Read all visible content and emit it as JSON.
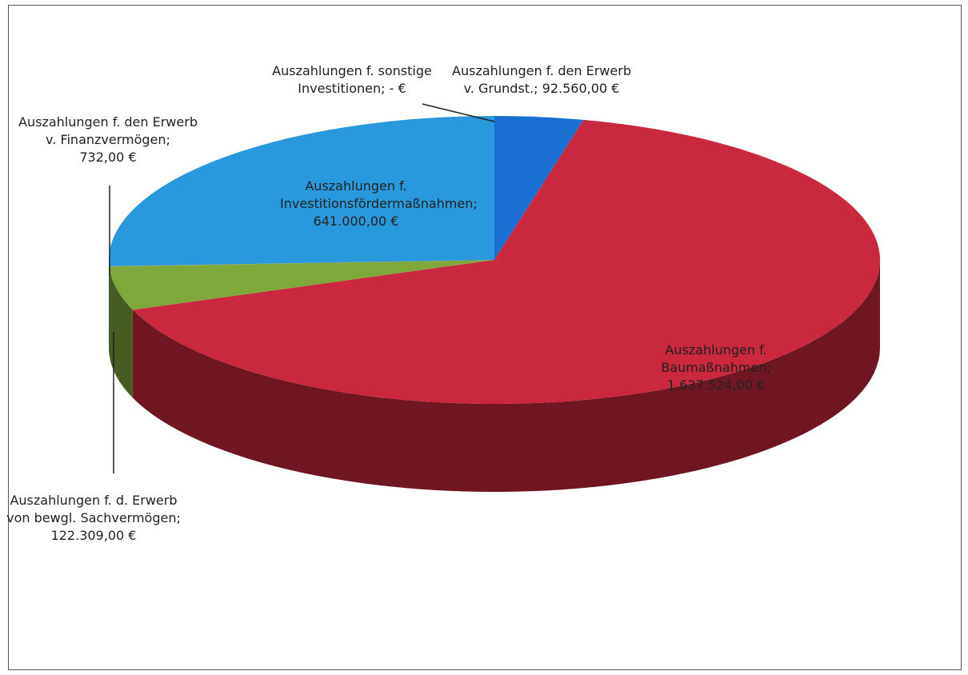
{
  "chart_data": {
    "type": "pie",
    "categories": [
      "Auszahlungen f. den Erwerb v. Grundst.;",
      "Auszahlungen f. Baumaßnahmen;",
      "Auszahlungen f. d. Erwerb von bewgl. Sachvermögen;",
      "Auszahlungen f. den Erwerb v. Finanzvermögen;",
      "Auszahlungen f. Investitionsfördermaßnahmen;",
      "Auszahlungen f. sonstige Investitionen;"
    ],
    "values": [
      92560,
      1637524,
      122309,
      732,
      641000,
      0
    ],
    "value_labels": [
      "92.560,00 €",
      "1.637.524,00 €",
      "122.309,00 €",
      "732,00 €",
      "641.000,00 €",
      "-  €"
    ],
    "colors": [
      "#1c6fd2",
      "#c9283e",
      "#7fa83a",
      "#d88a2a",
      "#2a98dc",
      "#888888"
    ]
  }
}
